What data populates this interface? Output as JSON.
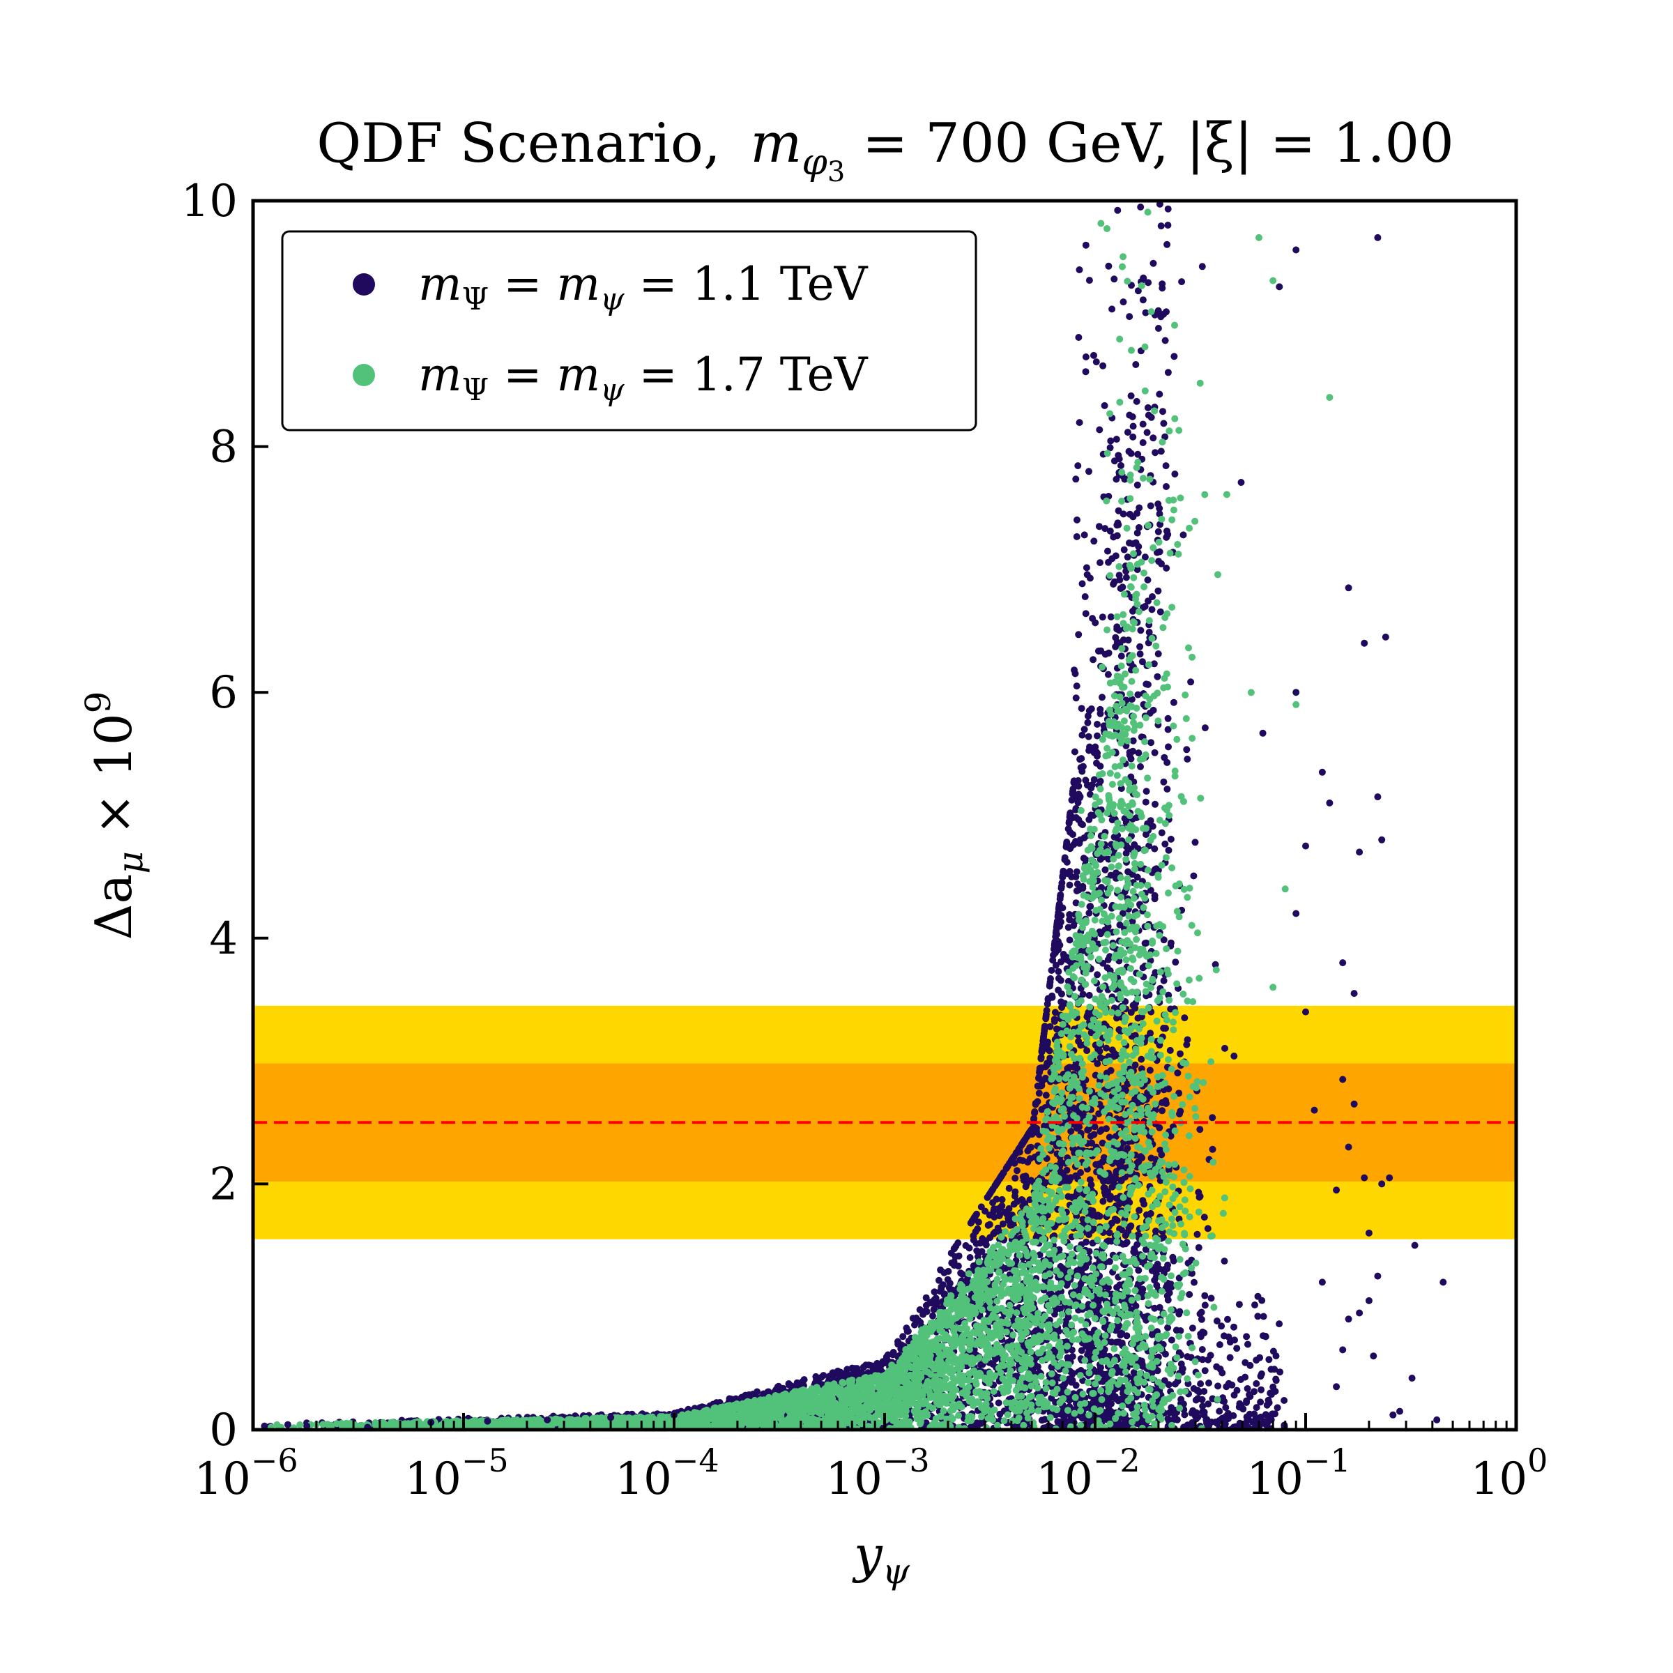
{
  "chart_data": {
    "type": "scatter",
    "title": "QDF Scenario, m_φ3 = 700 GeV, |ξ| = 1.00",
    "xlabel": "y_ψ",
    "ylabel": "Δa_μ × 10^9",
    "xscale": "log",
    "xlim": [
      1e-06,
      1
    ],
    "ylim": [
      0,
      10
    ],
    "x_ticks": [
      1e-06,
      1e-05,
      0.0001,
      0.001,
      0.01,
      0.1,
      1
    ],
    "y_ticks": [
      0,
      2,
      4,
      6,
      8,
      10
    ],
    "x_tick_labels": [
      {
        "base": "10",
        "exp": "−6"
      },
      {
        "base": "10",
        "exp": "−5"
      },
      {
        "base": "10",
        "exp": "−4"
      },
      {
        "base": "10",
        "exp": "−3"
      },
      {
        "base": "10",
        "exp": "−2"
      },
      {
        "base": "10",
        "exp": "−1"
      },
      {
        "base": "10",
        "exp": "0"
      }
    ],
    "y_tick_labels": [
      "0",
      "2",
      "4",
      "6",
      "8",
      "10"
    ],
    "title_parts": {
      "prefix": "QDF Scenario,",
      "m": "m",
      "sub": "φ",
      "subsub": "3",
      "mid": " = 700 GeV, |ξ| = 1.00"
    },
    "ylabel_parts": {
      "main": "Δa",
      "sub": "μ",
      "rest": " × 10",
      "sup": "9"
    },
    "xlabel_parts": {
      "main": "y",
      "sub": "ψ"
    },
    "bands": [
      {
        "name": "2-sigma",
        "y0": 1.55,
        "y1": 3.45,
        "color": "#FFD700"
      },
      {
        "name": "1-sigma",
        "y0": 2.02,
        "y1": 2.98,
        "color": "#FFA500"
      }
    ],
    "central_line": {
      "y": 2.5,
      "color": "#FF0000",
      "style": "dashed"
    },
    "legend_position": "top-left",
    "series": [
      {
        "name": "m_Ψ = m_ψ = 1.1 TeV",
        "label_parts": {
          "a": "m",
          "as": "Ψ",
          "b": " = m",
          "bs": "ψ",
          "c": " = 1.1 TeV"
        },
        "color": "#1F0A5E",
        "points": "dense scatter"
      },
      {
        "name": "m_Ψ = m_ψ = 1.7 TeV",
        "label_parts": {
          "a": "m",
          "as": "Ψ",
          "b": " = m",
          "bs": "ψ",
          "c": " = 1.7 TeV"
        },
        "color": "#52C27A",
        "points": "dense scatter"
      }
    ],
    "outlier_points_series1": [
      [
        0.22,
        9.7
      ],
      [
        0.09,
        9.6
      ],
      [
        0.075,
        9.3
      ],
      [
        0.16,
        6.85
      ],
      [
        0.19,
        6.4
      ],
      [
        0.24,
        6.45
      ],
      [
        0.09,
        6.0
      ],
      [
        0.12,
        5.35
      ],
      [
        0.13,
        5.1
      ],
      [
        0.22,
        5.15
      ],
      [
        0.18,
        4.7
      ],
      [
        0.23,
        4.8
      ],
      [
        0.1,
        4.75
      ],
      [
        0.09,
        4.2
      ],
      [
        0.15,
        3.8
      ],
      [
        0.17,
        3.55
      ],
      [
        0.1,
        3.4
      ],
      [
        0.15,
        2.85
      ],
      [
        0.17,
        2.65
      ],
      [
        0.11,
        2.6
      ],
      [
        0.16,
        2.3
      ],
      [
        0.19,
        2.05
      ],
      [
        0.23,
        2.0
      ],
      [
        0.25,
        2.05
      ],
      [
        0.14,
        1.95
      ],
      [
        0.2,
        1.6
      ],
      [
        0.33,
        1.5
      ],
      [
        0.45,
        1.2
      ],
      [
        0.22,
        1.25
      ],
      [
        0.16,
        0.9
      ],
      [
        0.18,
        0.95
      ],
      [
        0.21,
        0.6
      ],
      [
        0.32,
        0.42
      ],
      [
        0.14,
        0.35
      ],
      [
        0.28,
        0.15
      ],
      [
        0.42,
        0.08
      ],
      [
        0.12,
        1.2
      ],
      [
        0.2,
        1.05
      ],
      [
        0.26,
        0.12
      ],
      [
        0.15,
        0.65
      ]
    ],
    "outlier_points_series2": [
      [
        0.13,
        8.4
      ],
      [
        0.07,
        9.35
      ],
      [
        0.06,
        9.7
      ],
      [
        0.09,
        5.9
      ],
      [
        0.08,
        4.4
      ],
      [
        0.07,
        3.6
      ]
    ],
    "low_tail": [
      [
        1.3e-06,
        0.04
      ],
      [
        1.8e-06,
        0.03
      ],
      [
        2.5e-06,
        0.05
      ],
      [
        3.5e-06,
        0.02
      ],
      [
        5e-06,
        0.05
      ],
      [
        7e-06,
        0.06
      ],
      [
        9e-06,
        0.04
      ],
      [
        1.3e-05,
        0.07
      ],
      [
        1.8e-05,
        0.06
      ],
      [
        2.5e-05,
        0.08
      ],
      [
        3.5e-05,
        0.07
      ],
      [
        5e-05,
        0.1
      ],
      [
        7e-05,
        0.09
      ],
      [
        0.0001,
        0.12
      ]
    ]
  }
}
